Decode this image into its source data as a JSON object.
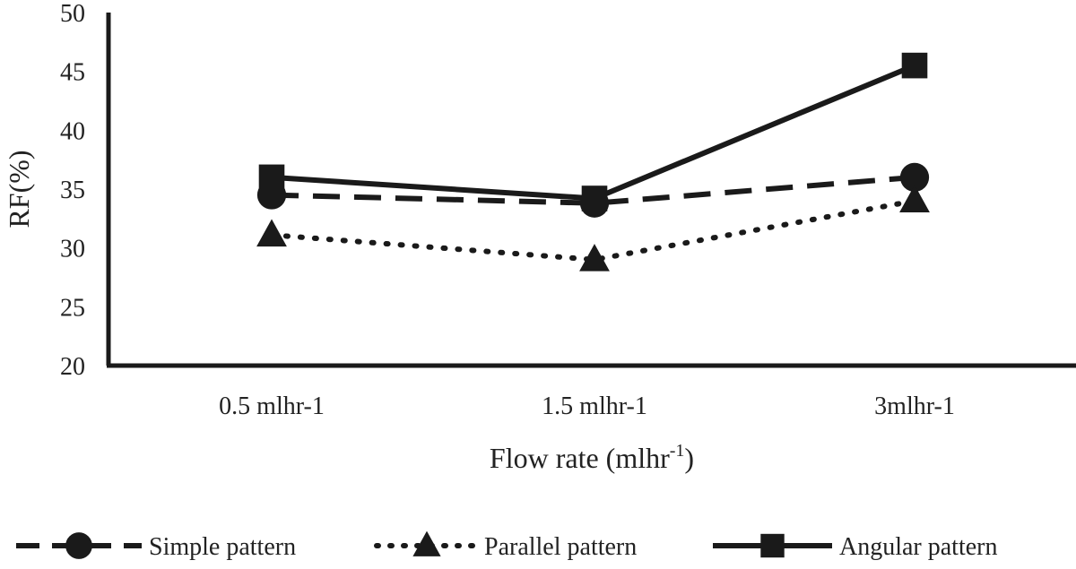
{
  "chart_data": {
    "type": "line",
    "categories": [
      "0.5 mlhr-1",
      "1.5 mlhr-1",
      "3mlhr-1"
    ],
    "series": [
      {
        "name": "Simple pattern",
        "values": [
          34.5,
          33.8,
          36.0
        ],
        "line_style": "dashed",
        "marker": "circle"
      },
      {
        "name": "Parallel pattern",
        "values": [
          31.1,
          29.0,
          34.0
        ],
        "line_style": "dotted",
        "marker": "triangle"
      },
      {
        "name": "Angular pattern",
        "values": [
          36.0,
          34.2,
          45.5
        ],
        "line_style": "solid",
        "marker": "square"
      }
    ],
    "title": "",
    "xlabel": "Flow rate (mlhr",
    "xlabel_superscript": "-1",
    "xlabel_suffix": ")",
    "ylabel": "RF(%)",
    "ylim": [
      20,
      50
    ],
    "yticks": [
      "20",
      "25",
      "30",
      "35",
      "40",
      "45",
      "50"
    ],
    "grid": false,
    "legend_position": "bottom",
    "color": "#1a1a1a"
  }
}
